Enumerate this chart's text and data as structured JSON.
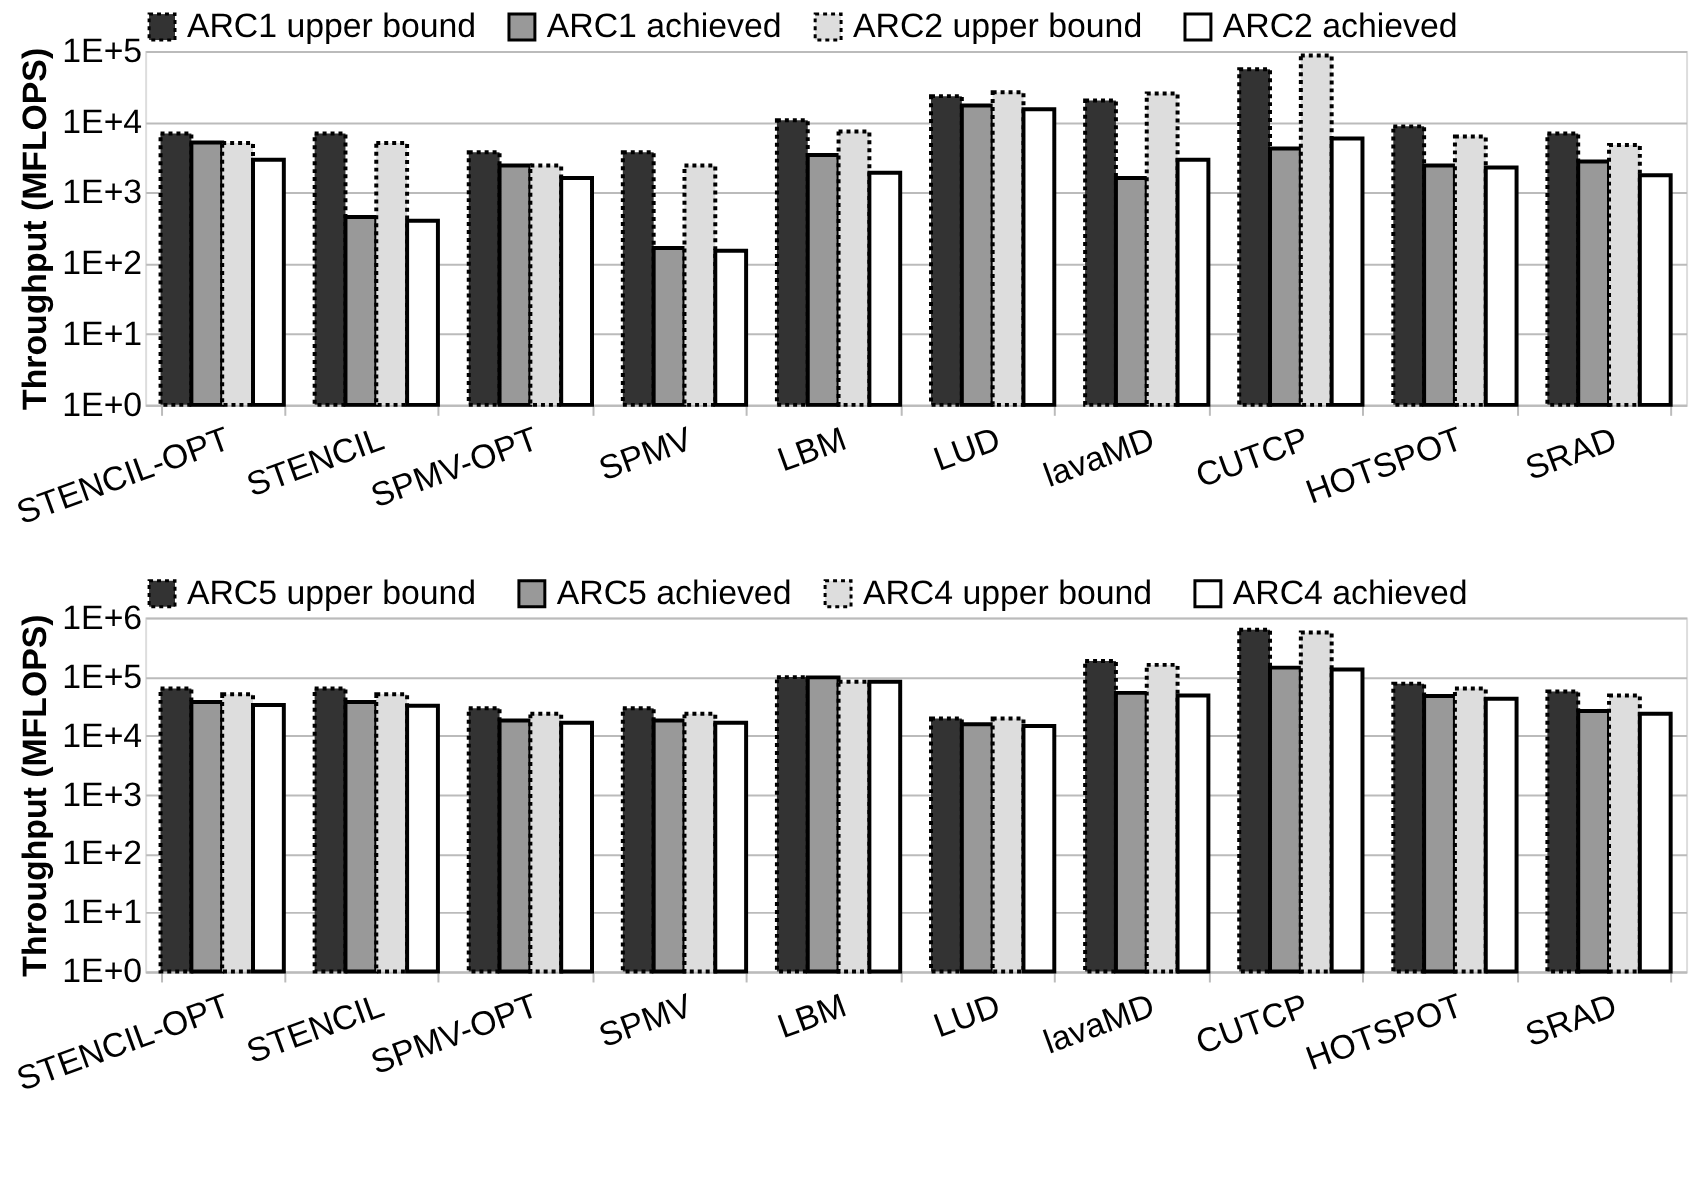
{
  "chart_data": [
    {
      "type": "bar",
      "ylabel": "Throughput (MFLOPS)",
      "log": true,
      "grid": "y",
      "legend": "top",
      "categories": [
        "STENCIL-OPT",
        "STENCIL",
        "SPMV-OPT",
        "SPMV",
        "LBM",
        "LUD",
        "lavaMD",
        "CUTCP",
        "HOTSPOT",
        "SRAD"
      ],
      "ylim": [
        1,
        100000
      ],
      "yticks": [
        {
          "value": 1,
          "label": "1E+0"
        },
        {
          "value": 10,
          "label": "1E+1"
        },
        {
          "value": 100,
          "label": "1E+2"
        },
        {
          "value": 1000,
          "label": "1E+3"
        },
        {
          "value": 10000,
          "label": "1E+4"
        },
        {
          "value": 100000,
          "label": "1E+5"
        }
      ],
      "series": [
        {
          "name": "ARC1 upper bound",
          "color": "#333333",
          "line_style": "dotted",
          "values": [
            6800,
            6800,
            3700,
            3700,
            10500,
            23000,
            20000,
            55000,
            8600,
            6800
          ]
        },
        {
          "name": "ARC1 achieved",
          "color": "#999999",
          "line_style": "solid",
          "values": [
            5100,
            450,
            2400,
            165,
            3400,
            17000,
            1600,
            4200,
            2400,
            2750
          ]
        },
        {
          "name": "ARC2  upper bound",
          "color": "#dddddd",
          "line_style": "dotted",
          "values": [
            5000,
            5000,
            2400,
            2400,
            7300,
            26000,
            25000,
            86000,
            6200,
            4700
          ]
        },
        {
          "name": "ARC2 achieved",
          "color": "#ffffff",
          "line_style": "solid",
          "values": [
            2900,
            400,
            1600,
            150,
            1900,
            15000,
            2900,
            5800,
            2250,
            1750
          ]
        }
      ]
    },
    {
      "type": "bar",
      "ylabel": "Throughput (MFLOPS)",
      "log": true,
      "grid": "y",
      "legend": "top",
      "categories": [
        "STENCIL-OPT",
        "STENCIL",
        "SPMV-OPT",
        "SPMV",
        "LBM",
        "LUD",
        "lavaMD",
        "CUTCP",
        "HOTSPOT",
        "SRAD"
      ],
      "ylim": [
        1,
        1000000
      ],
      "yticks": [
        {
          "value": 1,
          "label": "1E+0"
        },
        {
          "value": 10,
          "label": "1E+1"
        },
        {
          "value": 100,
          "label": "1E+2"
        },
        {
          "value": 1000,
          "label": "1E+3"
        },
        {
          "value": 10000,
          "label": "1E+4"
        },
        {
          "value": 100000,
          "label": "1E+5"
        },
        {
          "value": 1000000,
          "label": "1E+6"
        }
      ],
      "series": [
        {
          "name": "ARC5  upper bound",
          "color": "#333333",
          "line_style": "dotted",
          "values": [
            63000,
            63000,
            29000,
            29000,
            98000,
            19500,
            184000,
            620000,
            76000,
            56000
          ]
        },
        {
          "name": "ARC5 achieved",
          "color": "#999999",
          "line_style": "solid",
          "values": [
            37000,
            37000,
            18000,
            18000,
            97000,
            15500,
            53000,
            142000,
            47000,
            26000
          ]
        },
        {
          "name": "ARC4  upper bound",
          "color": "#dddddd",
          "line_style": "dotted",
          "values": [
            50000,
            50000,
            23500,
            23500,
            82000,
            19500,
            158000,
            560000,
            63000,
            48000
          ]
        },
        {
          "name": "ARC4 achieved",
          "color": "#ffffff",
          "line_style": "solid",
          "values": [
            33000,
            32000,
            16500,
            16500,
            82000,
            14500,
            48000,
            132000,
            42000,
            23500
          ]
        }
      ]
    }
  ]
}
